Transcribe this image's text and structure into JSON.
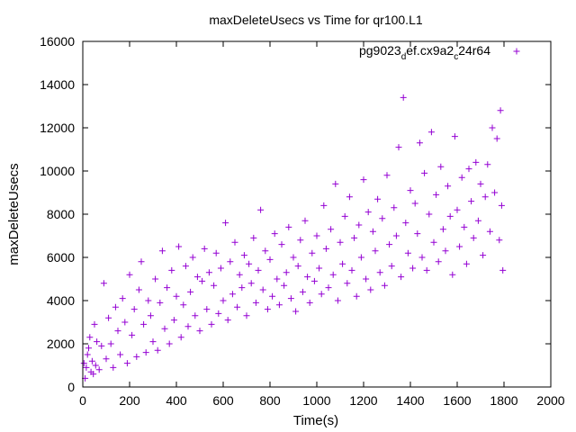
{
  "chart_data": {
    "type": "scatter",
    "title": "maxDeleteUsecs vs Time for qr100.L1",
    "xlabel": "Time(s)",
    "ylabel": "maxDeleteUsecs",
    "xlim": [
      0,
      2000
    ],
    "ylim": [
      0,
      16000
    ],
    "xticks": [
      "0",
      "200",
      "400",
      "600",
      "800",
      "1000",
      "1200",
      "1400",
      "1600",
      "1800",
      "2000"
    ],
    "yticks": [
      "0",
      "2000",
      "4000",
      "6000",
      "8000",
      "10000",
      "12000",
      "14000",
      "16000"
    ],
    "legend_position": "top-right",
    "series": [
      {
        "name_main": "pg9023",
        "name_sub1": "d",
        "name_mid": "ef.cx9a2",
        "name_sub2": "c",
        "name_tail": "24r64",
        "color": "#9400d3",
        "marker": "plus",
        "points": [
          [
            5,
            1100
          ],
          [
            10,
            400
          ],
          [
            15,
            900
          ],
          [
            20,
            1500
          ],
          [
            25,
            1800
          ],
          [
            30,
            2300
          ],
          [
            35,
            700
          ],
          [
            40,
            1200
          ],
          [
            45,
            600
          ],
          [
            50,
            2900
          ],
          [
            55,
            1000
          ],
          [
            60,
            2100
          ],
          [
            70,
            800
          ],
          [
            80,
            1900
          ],
          [
            90,
            4800
          ],
          [
            100,
            1300
          ],
          [
            110,
            3200
          ],
          [
            120,
            2000
          ],
          [
            130,
            900
          ],
          [
            140,
            3700
          ],
          [
            150,
            2600
          ],
          [
            160,
            1500
          ],
          [
            170,
            4100
          ],
          [
            180,
            3000
          ],
          [
            190,
            1100
          ],
          [
            200,
            5200
          ],
          [
            210,
            2400
          ],
          [
            220,
            3600
          ],
          [
            230,
            1400
          ],
          [
            240,
            4500
          ],
          [
            250,
            5800
          ],
          [
            260,
            2900
          ],
          [
            270,
            1600
          ],
          [
            280,
            4000
          ],
          [
            290,
            3300
          ],
          [
            300,
            2100
          ],
          [
            310,
            5000
          ],
          [
            320,
            1700
          ],
          [
            330,
            3900
          ],
          [
            340,
            6300
          ],
          [
            350,
            2700
          ],
          [
            360,
            4600
          ],
          [
            370,
            2000
          ],
          [
            380,
            5400
          ],
          [
            390,
            3100
          ],
          [
            400,
            4200
          ],
          [
            410,
            6500
          ],
          [
            420,
            2300
          ],
          [
            430,
            3800
          ],
          [
            440,
            5600
          ],
          [
            450,
            2800
          ],
          [
            460,
            4400
          ],
          [
            470,
            6000
          ],
          [
            480,
            3300
          ],
          [
            490,
            5100
          ],
          [
            500,
            2600
          ],
          [
            510,
            4900
          ],
          [
            520,
            6400
          ],
          [
            530,
            3600
          ],
          [
            540,
            5300
          ],
          [
            550,
            2900
          ],
          [
            560,
            4700
          ],
          [
            570,
            6200
          ],
          [
            580,
            3400
          ],
          [
            590,
            5500
          ],
          [
            600,
            4000
          ],
          [
            610,
            7600
          ],
          [
            620,
            3100
          ],
          [
            630,
            5800
          ],
          [
            640,
            4300
          ],
          [
            650,
            6700
          ],
          [
            660,
            3700
          ],
          [
            670,
            5200
          ],
          [
            680,
            4600
          ],
          [
            690,
            6100
          ],
          [
            700,
            3300
          ],
          [
            710,
            5700
          ],
          [
            720,
            4800
          ],
          [
            730,
            6900
          ],
          [
            740,
            3900
          ],
          [
            750,
            5400
          ],
          [
            760,
            8200
          ],
          [
            770,
            4500
          ],
          [
            780,
            6300
          ],
          [
            790,
            3600
          ],
          [
            800,
            5900
          ],
          [
            810,
            4200
          ],
          [
            820,
            7100
          ],
          [
            830,
            5000
          ],
          [
            840,
            3800
          ],
          [
            850,
            6600
          ],
          [
            860,
            4700
          ],
          [
            870,
            5300
          ],
          [
            880,
            7400
          ],
          [
            890,
            4100
          ],
          [
            900,
            6000
          ],
          [
            910,
            3500
          ],
          [
            920,
            5600
          ],
          [
            930,
            6800
          ],
          [
            940,
            4400
          ],
          [
            950,
            7700
          ],
          [
            960,
            5100
          ],
          [
            970,
            3900
          ],
          [
            980,
            6200
          ],
          [
            990,
            4900
          ],
          [
            1000,
            7000
          ],
          [
            1010,
            5500
          ],
          [
            1020,
            4300
          ],
          [
            1030,
            8400
          ],
          [
            1040,
            6400
          ],
          [
            1050,
            4600
          ],
          [
            1060,
            7300
          ],
          [
            1070,
            5200
          ],
          [
            1080,
            9400
          ],
          [
            1090,
            4000
          ],
          [
            1100,
            6700
          ],
          [
            1110,
            5700
          ],
          [
            1120,
            7900
          ],
          [
            1130,
            4800
          ],
          [
            1140,
            8800
          ],
          [
            1150,
            5400
          ],
          [
            1160,
            6900
          ],
          [
            1170,
            4200
          ],
          [
            1180,
            7500
          ],
          [
            1190,
            6000
          ],
          [
            1200,
            9600
          ],
          [
            1210,
            5000
          ],
          [
            1220,
            8100
          ],
          [
            1230,
            4500
          ],
          [
            1240,
            7200
          ],
          [
            1250,
            6300
          ],
          [
            1260,
            8700
          ],
          [
            1270,
            5300
          ],
          [
            1280,
            7800
          ],
          [
            1290,
            4700
          ],
          [
            1300,
            9800
          ],
          [
            1310,
            6600
          ],
          [
            1320,
            5600
          ],
          [
            1330,
            8300
          ],
          [
            1340,
            7000
          ],
          [
            1350,
            11100
          ],
          [
            1360,
            5100
          ],
          [
            1370,
            13400
          ],
          [
            1380,
            7600
          ],
          [
            1390,
            6200
          ],
          [
            1400,
            9100
          ],
          [
            1410,
            5500
          ],
          [
            1420,
            8500
          ],
          [
            1430,
            7100
          ],
          [
            1440,
            11300
          ],
          [
            1450,
            6000
          ],
          [
            1460,
            9900
          ],
          [
            1470,
            5400
          ],
          [
            1480,
            8000
          ],
          [
            1490,
            11800
          ],
          [
            1500,
            6700
          ],
          [
            1510,
            8900
          ],
          [
            1520,
            5800
          ],
          [
            1530,
            10200
          ],
          [
            1540,
            7300
          ],
          [
            1550,
            6300
          ],
          [
            1560,
            9300
          ],
          [
            1570,
            7900
          ],
          [
            1580,
            5200
          ],
          [
            1590,
            11600
          ],
          [
            1600,
            8200
          ],
          [
            1610,
            6500
          ],
          [
            1620,
            9700
          ],
          [
            1630,
            7400
          ],
          [
            1640,
            5700
          ],
          [
            1650,
            10100
          ],
          [
            1660,
            8600
          ],
          [
            1670,
            6900
          ],
          [
            1680,
            10400
          ],
          [
            1690,
            7700
          ],
          [
            1700,
            9400
          ],
          [
            1710,
            6100
          ],
          [
            1720,
            8800
          ],
          [
            1730,
            10300
          ],
          [
            1740,
            7200
          ],
          [
            1750,
            12000
          ],
          [
            1760,
            9000
          ],
          [
            1770,
            11500
          ],
          [
            1780,
            6800
          ],
          [
            1785,
            12800
          ],
          [
            1790,
            8400
          ],
          [
            1795,
            5400
          ]
        ]
      }
    ]
  }
}
